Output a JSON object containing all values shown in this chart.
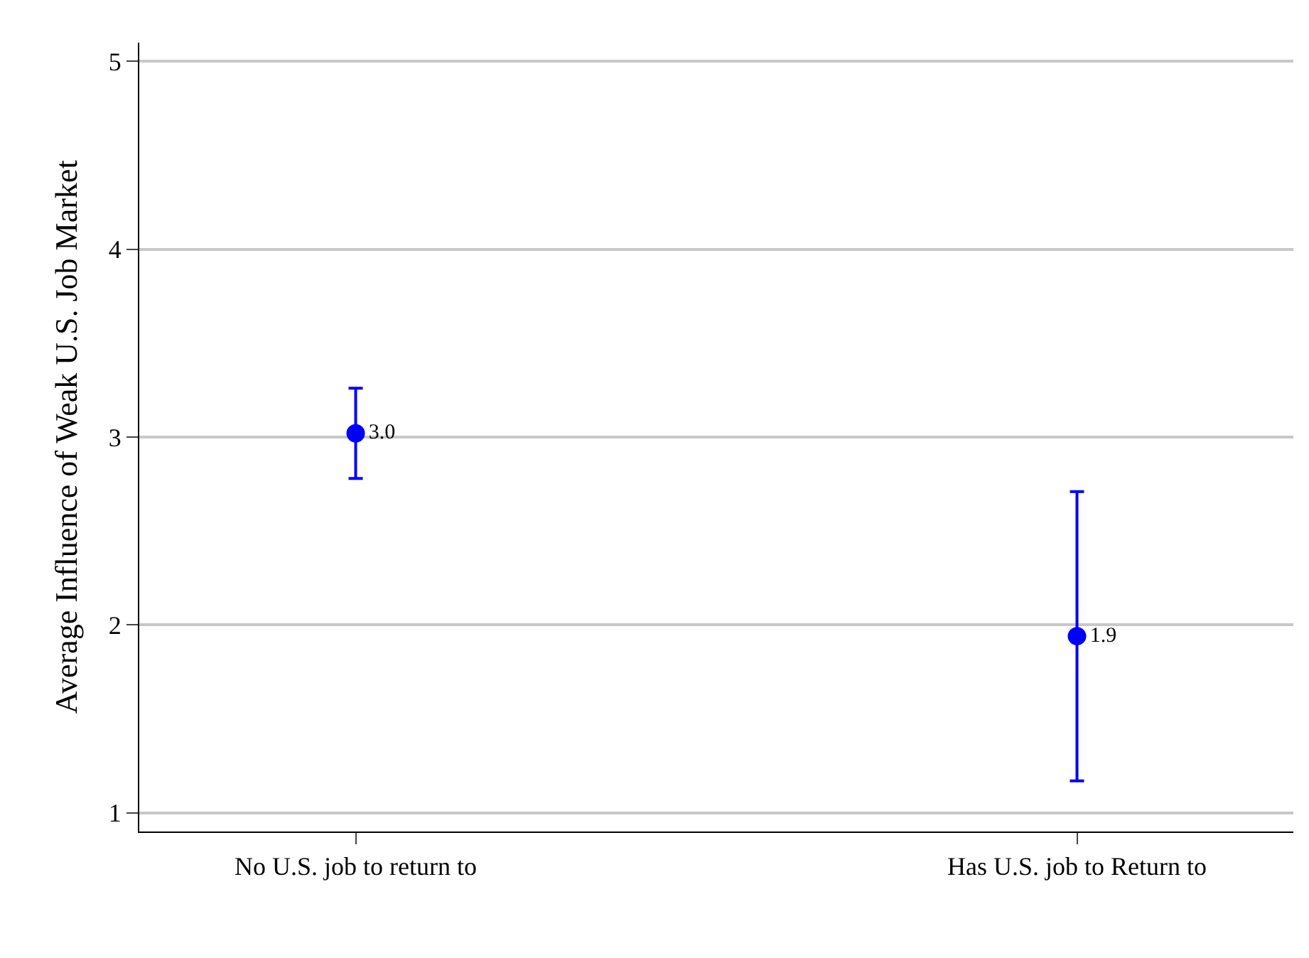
{
  "chart_data": {
    "type": "scatter",
    "ylabel": "Average Influence of Weak U.S. Job Market",
    "categories": [
      "No U.S. job to return to",
      "Has U.S. job to Return to"
    ],
    "series": [
      {
        "color": "#0000ff",
        "values": [
          3.02,
          1.94
        ],
        "errors": [
          [
            2.78,
            3.26
          ],
          [
            1.17,
            2.71
          ]
        ],
        "value_labels": [
          "3.0",
          "1.9"
        ]
      }
    ],
    "ylim": [
      0.9,
      5.1
    ],
    "yticks": [
      1,
      2,
      3,
      4,
      5
    ],
    "grid": "y",
    "legend": false,
    "marker": "circle"
  }
}
